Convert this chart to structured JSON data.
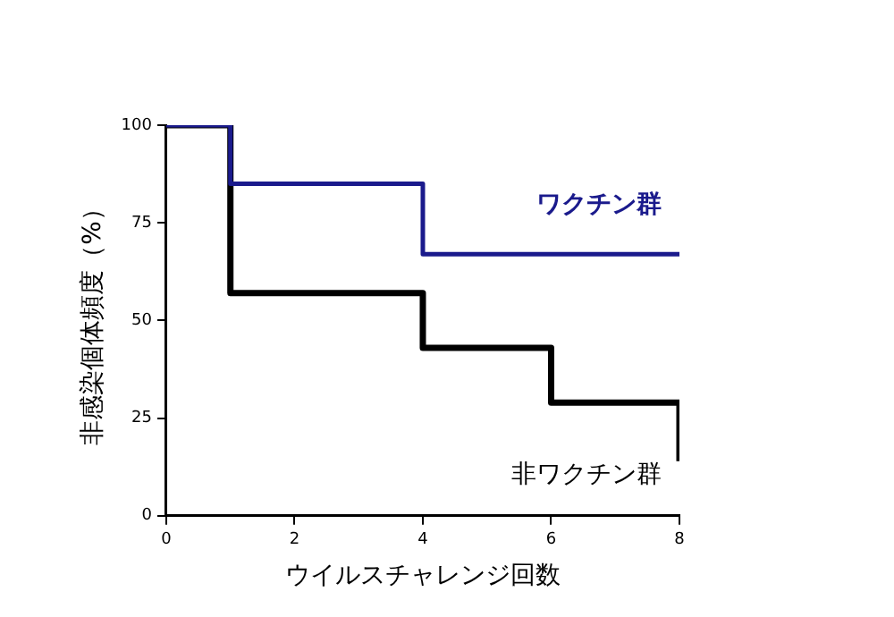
{
  "chart_data": {
    "type": "step",
    "xlabel": "ウイルスチャレンジ回数",
    "ylabel": "非感染個体頻度（%）",
    "xlim": [
      0,
      8
    ],
    "xticks": [
      0,
      2,
      4,
      6,
      8
    ],
    "ylim": [
      0,
      100
    ],
    "yticks": [
      0,
      25,
      50,
      75,
      100
    ],
    "grid": false,
    "legend": false,
    "marker": "none",
    "line_style": "solid",
    "series": [
      {
        "name": "ワクチン群",
        "color": "#1a1a8c",
        "x": [
          0,
          1,
          4,
          8
        ],
        "values": [
          100,
          85,
          67,
          67
        ]
      },
      {
        "name": "非ワクチン群",
        "color": "#000000",
        "x": [
          0,
          1,
          4,
          6,
          8,
          8
        ],
        "values": [
          100,
          57,
          43,
          29,
          29,
          14
        ]
      }
    ]
  }
}
